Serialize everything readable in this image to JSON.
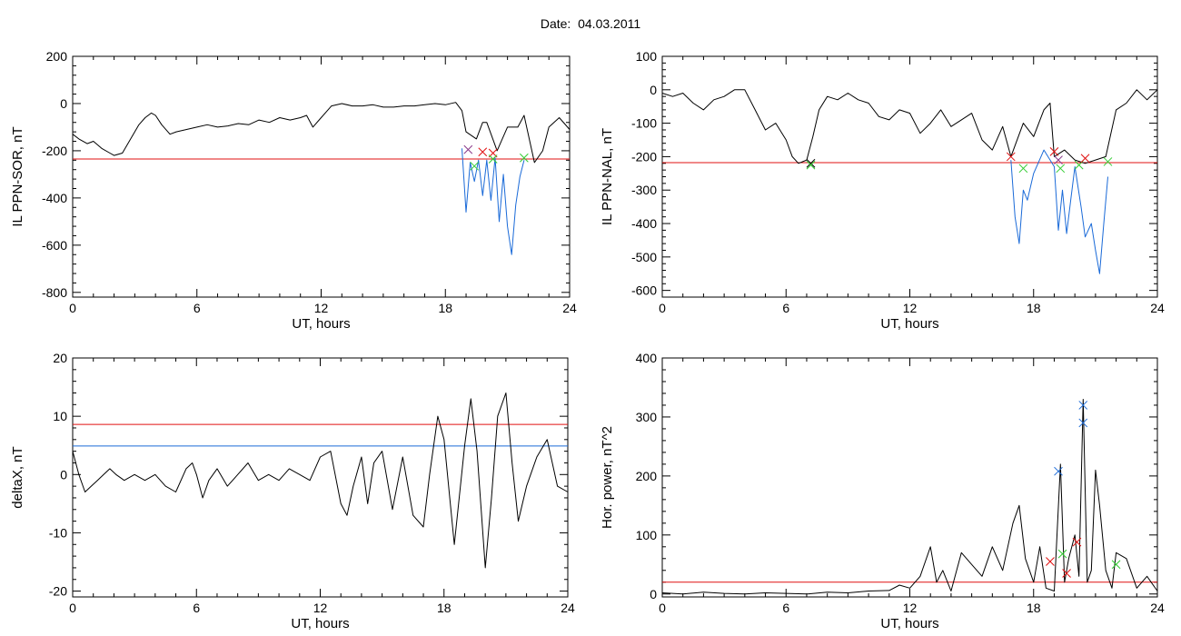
{
  "header": {
    "date_label": "Date:",
    "date_value": "04.03.2011"
  },
  "colors": {
    "trace": "#000000",
    "red": "#e01010",
    "blue": "#1a6ad8",
    "green": "#33cc33",
    "purple": "#8a3a8a"
  },
  "chart_data": [
    {
      "type": "line",
      "ylabel": "IL PPN-SOR, nT",
      "xlabel": "UT, hours",
      "xlim": [
        0,
        24
      ],
      "ylim": [
        -820,
        200
      ],
      "xticks": [
        0,
        6,
        12,
        18,
        24
      ],
      "yticks": [
        -800,
        -600,
        -400,
        -200,
        0,
        200
      ],
      "threshold_lines": [
        {
          "y": -235,
          "color": "red"
        }
      ],
      "series": [
        {
          "color": "black",
          "x": [
            0,
            0.3,
            0.7,
            1.0,
            1.4,
            1.8,
            2.0,
            2.4,
            2.8,
            3.2,
            3.5,
            3.8,
            4.0,
            4.3,
            4.7,
            5.0,
            5.5,
            6.0,
            6.5,
            7.0,
            7.5,
            8.0,
            8.5,
            9.0,
            9.5,
            10.0,
            10.5,
            11.0,
            11.3,
            11.6,
            12.0,
            12.5,
            13.0,
            13.5,
            14.0,
            14.5,
            15.0,
            15.5,
            16.0,
            16.5,
            17.0,
            17.5,
            18.0,
            18.5,
            18.8,
            19.0,
            19.5,
            19.8,
            20.0,
            20.5,
            21.0,
            21.5,
            21.8,
            22.3,
            22.7,
            23.0,
            23.5,
            24.0
          ],
          "y": [
            -130,
            -150,
            -170,
            -160,
            -190,
            -210,
            -220,
            -210,
            -150,
            -90,
            -60,
            -40,
            -50,
            -90,
            -130,
            -120,
            -110,
            -100,
            -90,
            -100,
            -95,
            -85,
            -90,
            -70,
            -80,
            -60,
            -70,
            -60,
            -50,
            -100,
            -60,
            -10,
            0,
            -10,
            -10,
            -5,
            -15,
            -15,
            -10,
            -10,
            -5,
            0,
            -5,
            5,
            -30,
            -120,
            -150,
            -80,
            -80,
            -200,
            -100,
            -100,
            -50,
            -250,
            -200,
            -100,
            -60,
            -110
          ]
        },
        {
          "color": "blue",
          "x": [
            18.8,
            19.0,
            19.2,
            19.4,
            19.6,
            19.8,
            20.0,
            20.2,
            20.4,
            20.6,
            20.8,
            21.0,
            21.2,
            21.4,
            21.6,
            21.8
          ],
          "y": [
            -190,
            -460,
            -250,
            -330,
            -240,
            -390,
            -240,
            -410,
            -230,
            -500,
            -300,
            -520,
            -640,
            -430,
            -310,
            -240
          ]
        }
      ],
      "markers": [
        {
          "x": 19.1,
          "y": -195,
          "color": "purple"
        },
        {
          "x": 19.4,
          "y": -265,
          "color": "green"
        },
        {
          "x": 19.8,
          "y": -205,
          "color": "red"
        },
        {
          "x": 20.3,
          "y": -210,
          "color": "red"
        },
        {
          "x": 20.3,
          "y": -235,
          "color": "green"
        },
        {
          "x": 21.8,
          "y": -230,
          "color": "green"
        }
      ]
    },
    {
      "type": "line",
      "ylabel": "IL PPN-NAL, nT",
      "xlabel": "UT, hours",
      "xlim": [
        0,
        24
      ],
      "ylim": [
        -620,
        100
      ],
      "xticks": [
        0,
        6,
        12,
        18,
        24
      ],
      "yticks": [
        -600,
        -500,
        -400,
        -300,
        -200,
        -100,
        0,
        100
      ],
      "threshold_lines": [
        {
          "y": -218,
          "color": "red"
        }
      ],
      "series": [
        {
          "color": "black",
          "x": [
            0,
            0.5,
            1.0,
            1.5,
            2.0,
            2.5,
            3.0,
            3.5,
            4.0,
            4.5,
            5.0,
            5.5,
            6.0,
            6.3,
            6.6,
            7.0,
            7.3,
            7.6,
            8.0,
            8.5,
            9.0,
            9.5,
            10.0,
            10.5,
            11.0,
            11.5,
            12.0,
            12.5,
            13.0,
            13.5,
            14.0,
            14.5,
            15.0,
            15.5,
            16.0,
            16.5,
            16.9,
            17.5,
            18.0,
            18.5,
            18.8,
            19.0,
            19.5,
            20.0,
            20.5,
            21.0,
            21.5,
            22.0,
            22.5,
            23.0,
            23.5,
            24.0
          ],
          "y": [
            -10,
            -20,
            -10,
            -40,
            -60,
            -30,
            -20,
            0,
            0,
            -60,
            -120,
            -100,
            -150,
            -200,
            -220,
            -210,
            -140,
            -60,
            -20,
            -30,
            -10,
            -30,
            -40,
            -80,
            -90,
            -60,
            -70,
            -130,
            -100,
            -60,
            -110,
            -90,
            -70,
            -150,
            -180,
            -110,
            -200,
            -100,
            -140,
            -60,
            -40,
            -200,
            -180,
            -210,
            -220,
            -210,
            -200,
            -60,
            -40,
            0,
            -30,
            0
          ]
        },
        {
          "color": "blue",
          "x": [
            16.9,
            17.1,
            17.3,
            17.5,
            17.7,
            18.0,
            18.5,
            19.0,
            19.2,
            19.4,
            19.6,
            19.8,
            20.0,
            20.3,
            20.5,
            20.8,
            21.0,
            21.2,
            21.4,
            21.6
          ],
          "y": [
            -210,
            -380,
            -460,
            -300,
            -330,
            -250,
            -180,
            -230,
            -420,
            -300,
            -430,
            -330,
            -230,
            -350,
            -440,
            -400,
            -480,
            -550,
            -400,
            -260
          ]
        }
      ],
      "markers": [
        {
          "x": 7.2,
          "y": -220,
          "color": "black"
        },
        {
          "x": 7.2,
          "y": -225,
          "color": "green"
        },
        {
          "x": 16.9,
          "y": -200,
          "color": "red"
        },
        {
          "x": 17.5,
          "y": -235,
          "color": "green"
        },
        {
          "x": 19.0,
          "y": -185,
          "color": "red"
        },
        {
          "x": 19.2,
          "y": -210,
          "color": "purple"
        },
        {
          "x": 19.3,
          "y": -235,
          "color": "green"
        },
        {
          "x": 20.2,
          "y": -225,
          "color": "green"
        },
        {
          "x": 20.5,
          "y": -205,
          "color": "red"
        },
        {
          "x": 21.6,
          "y": -215,
          "color": "green"
        }
      ]
    },
    {
      "type": "line",
      "ylabel": "deltaX, nT",
      "xlabel": "UT, hours",
      "xlim": [
        0,
        24
      ],
      "ylim": [
        -21,
        20
      ],
      "xticks": [
        0,
        6,
        12,
        18,
        24
      ],
      "yticks": [
        -20,
        -10,
        0,
        10,
        20
      ],
      "threshold_lines": [
        {
          "y": 8.6,
          "color": "red"
        },
        {
          "y": 4.9,
          "color": "blue"
        }
      ],
      "series": [
        {
          "color": "black",
          "x": [
            0,
            0.3,
            0.6,
            0.9,
            1.2,
            1.5,
            1.8,
            2.1,
            2.5,
            3.0,
            3.5,
            4.0,
            4.5,
            5.0,
            5.5,
            5.8,
            6.0,
            6.3,
            6.6,
            7.0,
            7.5,
            8.0,
            8.5,
            9.0,
            9.5,
            10.0,
            10.5,
            11.0,
            11.5,
            12.0,
            12.5,
            13.0,
            13.3,
            13.6,
            14.0,
            14.3,
            14.6,
            15.0,
            15.5,
            16.0,
            16.5,
            17.0,
            17.3,
            17.7,
            18.0,
            18.5,
            19.0,
            19.3,
            19.6,
            20.0,
            20.3,
            20.6,
            21.0,
            21.3,
            21.6,
            22.0,
            22.5,
            23.0,
            23.5,
            24.0
          ],
          "y": [
            4,
            0,
            -3,
            -2,
            -1,
            0,
            1,
            0,
            -1,
            0,
            -1,
            0,
            -2,
            -3,
            1,
            2,
            0,
            -4,
            -1,
            1,
            -2,
            0,
            2,
            -1,
            0,
            -1,
            1,
            0,
            -1,
            3,
            4,
            -5,
            -7,
            -2,
            3,
            -5,
            2,
            4,
            -6,
            3,
            -7,
            -9,
            0,
            10,
            6,
            -12,
            5,
            13,
            4,
            -16,
            -4,
            10,
            14,
            2,
            -8,
            -2,
            3,
            6,
            -2,
            -3
          ]
        }
      ],
      "markers": []
    },
    {
      "type": "line",
      "ylabel": "Hor. power, nT^2",
      "xlabel": "UT, hours",
      "xlim": [
        0,
        24
      ],
      "ylim": [
        -5,
        400
      ],
      "xticks": [
        0,
        6,
        12,
        18,
        24
      ],
      "yticks": [
        0,
        100,
        200,
        300,
        400
      ],
      "threshold_lines": [
        {
          "y": 20,
          "color": "red"
        }
      ],
      "series": [
        {
          "color": "black",
          "x": [
            0,
            1,
            2,
            3,
            4,
            5,
            6,
            7,
            8,
            9,
            10,
            11,
            11.5,
            12,
            12.5,
            13,
            13.3,
            13.6,
            14,
            14.5,
            15,
            15.5,
            16,
            16.5,
            17,
            17.3,
            17.6,
            18,
            18.3,
            18.6,
            19,
            19.3,
            19.5,
            19.7,
            20,
            20.2,
            20.4,
            20.6,
            20.8,
            21.0,
            21.2,
            21.5,
            21.8,
            22.0,
            22.5,
            23,
            23.5,
            24
          ],
          "y": [
            2,
            0,
            3,
            1,
            0,
            2,
            1,
            0,
            3,
            2,
            5,
            6,
            15,
            10,
            30,
            80,
            20,
            40,
            5,
            70,
            50,
            30,
            80,
            40,
            120,
            150,
            60,
            20,
            80,
            10,
            5,
            220,
            20,
            60,
            100,
            30,
            330,
            20,
            40,
            210,
            150,
            40,
            10,
            70,
            60,
            10,
            30,
            5
          ]
        }
      ],
      "markers": [
        {
          "x": 18.8,
          "y": 55,
          "color": "red"
        },
        {
          "x": 19.2,
          "y": 208,
          "color": "blue"
        },
        {
          "x": 19.4,
          "y": 68,
          "color": "green"
        },
        {
          "x": 19.6,
          "y": 35,
          "color": "red"
        },
        {
          "x": 20.1,
          "y": 88,
          "color": "red"
        },
        {
          "x": 20.4,
          "y": 290,
          "color": "blue"
        },
        {
          "x": 20.4,
          "y": 320,
          "color": "blue"
        },
        {
          "x": 22.0,
          "y": 50,
          "color": "green"
        }
      ]
    }
  ]
}
